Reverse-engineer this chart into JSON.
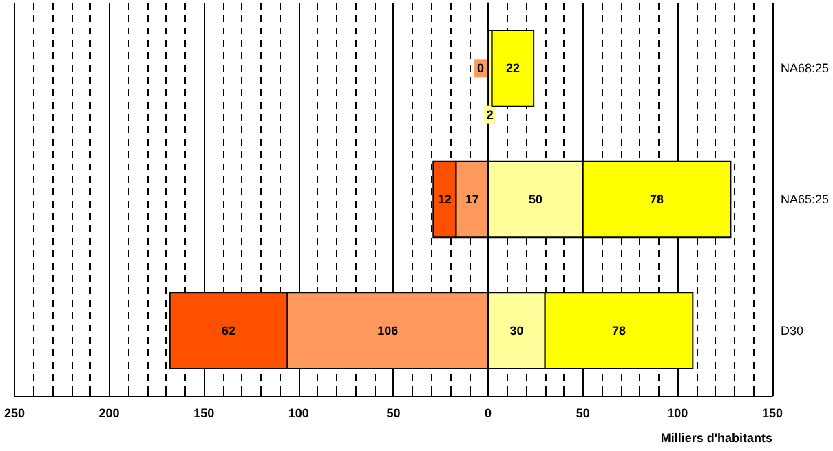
{
  "chart_data": {
    "type": "bar",
    "orientation": "horizontal",
    "xlabel": "Milliers d'habitants",
    "data_labels": true,
    "categories": [
      "NA68:25",
      "NA65:25",
      "D30"
    ],
    "series": [
      {
        "color": "#ff9a5c",
        "values": [
          0,
          17,
          106
        ],
        "base": [
          0,
          -17,
          -106
        ]
      },
      {
        "color": "#ff5000",
        "values": [
          null,
          12,
          62
        ],
        "base": [
          null,
          -29,
          -168
        ]
      },
      {
        "color": "#ffff99",
        "values": [
          2,
          50,
          30
        ],
        "base": [
          0,
          0,
          0
        ]
      },
      {
        "color": "#ffff00",
        "values": [
          22,
          78,
          78
        ],
        "base": [
          2,
          50,
          30
        ]
      }
    ],
    "xlim": [
      -250,
      150
    ],
    "xticks": [
      {
        "value": -250,
        "label": "250"
      },
      {
        "value": -240,
        "label": null
      },
      {
        "value": -230,
        "label": null
      },
      {
        "value": -220,
        "label": null
      },
      {
        "value": -210,
        "label": null
      },
      {
        "value": -200,
        "label": "200"
      },
      {
        "value": -190,
        "label": null
      },
      {
        "value": -180,
        "label": null
      },
      {
        "value": -170,
        "label": null
      },
      {
        "value": -160,
        "label": null
      },
      {
        "value": -150,
        "label": "150"
      },
      {
        "value": -140,
        "label": null
      },
      {
        "value": -130,
        "label": null
      },
      {
        "value": -120,
        "label": null
      },
      {
        "value": -110,
        "label": null
      },
      {
        "value": -100,
        "label": "100"
      },
      {
        "value": -90,
        "label": null
      },
      {
        "value": -80,
        "label": null
      },
      {
        "value": -70,
        "label": null
      },
      {
        "value": -60,
        "label": null
      },
      {
        "value": -50,
        "label": "50"
      },
      {
        "value": -40,
        "label": null
      },
      {
        "value": -30,
        "label": null
      },
      {
        "value": -20,
        "label": null
      },
      {
        "value": -10,
        "label": null
      },
      0,
      {
        "value": 10,
        "label": null
      },
      {
        "value": 20,
        "label": null
      },
      {
        "value": 30,
        "label": null
      },
      {
        "value": 40,
        "label": null
      },
      50,
      {
        "value": 60,
        "label": null
      },
      {
        "value": 70,
        "label": null
      },
      {
        "value": 80,
        "label": null
      },
      {
        "value": 90,
        "label": null
      },
      100,
      {
        "value": 110,
        "label": null
      },
      {
        "value": 120,
        "label": null
      },
      {
        "value": 130,
        "label": null
      },
      {
        "value": 140,
        "label": null
      },
      150
    ],
    "grid": true
  }
}
